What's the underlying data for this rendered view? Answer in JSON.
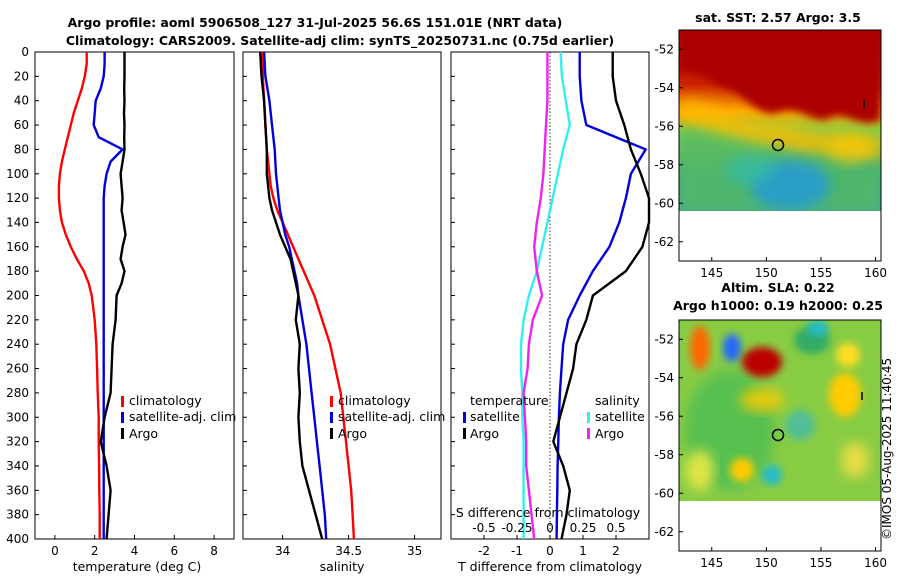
{
  "header": {
    "line1": "Argo profile: aoml 5906508_127 31-Jul-2025 56.6S 151.01E (NRT data)",
    "line2": "Climatology: CARS2009. Satellite-adj clim: synTS_20250731.nc (0.75d earlier)"
  },
  "colors": {
    "climatology": "#ff0000",
    "satellite": "#0000dd",
    "argo": "#000000",
    "sal_satellite": "#33eeee",
    "sal_argo": "#ee22ee"
  },
  "chart_data": [
    {
      "type": "line",
      "name": "temperature",
      "xlabel": "temperature (deg C)",
      "xlim": [
        -1,
        9
      ],
      "xticks": [
        "0",
        "2",
        "4",
        "6",
        "8"
      ],
      "ylim": [
        400,
        0
      ],
      "yticks": [
        "0",
        "20",
        "40",
        "60",
        "80",
        "100",
        "120",
        "140",
        "160",
        "180",
        "200",
        "220",
        "240",
        "260",
        "280",
        "300",
        "320",
        "340",
        "360",
        "380",
        "400"
      ],
      "legend": [
        "climatology",
        "satellite-adj. clim",
        "Argo"
      ],
      "depth": [
        0,
        10,
        20,
        30,
        40,
        50,
        60,
        70,
        80,
        90,
        100,
        110,
        120,
        130,
        140,
        150,
        160,
        170,
        180,
        190,
        200,
        220,
        240,
        260,
        280,
        300,
        320,
        340,
        360,
        380,
        400
      ],
      "series": [
        {
          "name": "climatology",
          "values": [
            1.6,
            1.6,
            1.5,
            1.35,
            1.15,
            0.95,
            0.8,
            0.65,
            0.5,
            0.35,
            0.25,
            0.2,
            0.2,
            0.25,
            0.35,
            0.55,
            0.8,
            1.1,
            1.45,
            1.7,
            1.85,
            2.0,
            2.08,
            2.12,
            2.15,
            2.2,
            2.2,
            2.22,
            2.23,
            2.25,
            2.25
          ]
        },
        {
          "name": "satellite-adj. clim",
          "values": [
            2.5,
            2.5,
            2.45,
            2.3,
            2.05,
            2.0,
            1.95,
            2.2,
            3.4,
            2.8,
            2.6,
            2.5,
            2.45,
            2.45,
            2.45,
            2.45,
            2.45,
            2.45,
            2.45,
            2.45,
            2.45,
            2.45,
            2.45,
            2.45,
            2.45,
            2.45,
            2.45,
            2.45,
            2.45,
            2.45,
            2.45
          ]
        },
        {
          "name": "Argo",
          "values": [
            3.5,
            3.5,
            3.5,
            3.48,
            3.5,
            3.47,
            3.5,
            3.48,
            3.5,
            3.4,
            3.3,
            3.35,
            3.4,
            3.35,
            3.45,
            3.55,
            3.4,
            3.3,
            3.5,
            3.35,
            3.1,
            3.05,
            2.9,
            2.85,
            2.8,
            2.5,
            2.3,
            2.6,
            2.8,
            2.7,
            2.6
          ]
        }
      ]
    },
    {
      "type": "line",
      "name": "salinity",
      "xlabel": "salinity",
      "xlim": [
        33.7,
        35.2
      ],
      "xticks": [
        "34",
        "34.5",
        "35"
      ],
      "ylim": [
        400,
        0
      ],
      "legend": [
        "climatology",
        "satellite-adj. clim",
        "Argo"
      ],
      "depth": [
        0,
        20,
        40,
        60,
        80,
        100,
        110,
        120,
        130,
        140,
        150,
        160,
        170,
        180,
        190,
        200,
        220,
        240,
        260,
        280,
        300,
        320,
        340,
        360,
        380,
        400
      ],
      "series": [
        {
          "name": "climatology",
          "values": [
            33.85,
            33.85,
            33.86,
            33.87,
            33.88,
            33.9,
            33.91,
            33.93,
            33.96,
            34.0,
            34.04,
            34.08,
            34.12,
            34.16,
            34.2,
            34.24,
            34.3,
            34.36,
            34.4,
            34.44,
            34.46,
            34.48,
            34.5,
            34.52,
            34.53,
            34.54
          ]
        },
        {
          "name": "satellite-adj. clim",
          "values": [
            33.86,
            33.87,
            33.9,
            33.92,
            33.94,
            33.95,
            33.96,
            33.97,
            33.98,
            34.0,
            34.02,
            34.05,
            34.07,
            34.09,
            34.11,
            34.12,
            34.15,
            34.18,
            34.2,
            34.22,
            34.24,
            34.26,
            34.28,
            34.3,
            34.32,
            34.33
          ]
        },
        {
          "name": "Argo",
          "values": [
            33.83,
            33.84,
            33.86,
            33.87,
            33.88,
            33.88,
            33.89,
            33.9,
            33.92,
            33.95,
            33.98,
            34.02,
            34.06,
            34.08,
            34.1,
            34.12,
            34.1,
            34.13,
            34.12,
            34.13,
            34.12,
            34.13,
            34.15,
            34.2,
            34.25,
            34.3
          ]
        }
      ]
    },
    {
      "type": "line",
      "name": "difference",
      "xlabel": "T difference from climatology",
      "xlabel2": "S difference from climatology",
      "xlim": [
        -3,
        3
      ],
      "xticks": [
        "-2",
        "-1",
        "0",
        "1",
        "2"
      ],
      "s_ticks": [
        "-0.5",
        "-0.25",
        "0",
        "0.25",
        "0.5"
      ],
      "ylim": [
        400,
        0
      ],
      "legend_temp": {
        "heading": "temperature",
        "items": [
          "satellite",
          "Argo"
        ]
      },
      "legend_sal": {
        "heading": "salinity",
        "items": [
          "satellite",
          "Argo"
        ]
      },
      "depth": [
        0,
        20,
        40,
        60,
        80,
        100,
        120,
        140,
        160,
        180,
        200,
        220,
        240,
        260,
        280,
        300,
        320,
        340,
        360,
        380,
        400
      ],
      "series": [
        {
          "name": "T satellite",
          "values": [
            0.9,
            0.9,
            0.95,
            1.1,
            2.9,
            2.45,
            2.3,
            2.1,
            1.8,
            1.3,
            0.9,
            0.55,
            0.4,
            0.35,
            0.3,
            0.27,
            0.25,
            0.23,
            0.22,
            0.21,
            0.2
          ]
        },
        {
          "name": "T Argo",
          "values": [
            1.9,
            1.9,
            2.0,
            2.25,
            2.45,
            2.75,
            3.0,
            3.0,
            2.8,
            2.3,
            1.3,
            1.1,
            0.8,
            0.7,
            0.5,
            0.3,
            0.1,
            0.4,
            0.6,
            0.5,
            0.35
          ]
        },
        {
          "name": "S satellite",
          "values": [
            0.08,
            0.09,
            0.12,
            0.15,
            0.1,
            0.06,
            0.02,
            -0.02,
            -0.06,
            -0.1,
            -0.16,
            -0.2,
            -0.22,
            -0.22,
            -0.21,
            -0.21,
            -0.2,
            -0.2,
            -0.2,
            -0.2,
            -0.2
          ]
        },
        {
          "name": "S Argo",
          "values": [
            -0.02,
            -0.02,
            -0.02,
            -0.03,
            -0.04,
            -0.05,
            -0.07,
            -0.1,
            -0.12,
            -0.1,
            -0.06,
            -0.13,
            -0.16,
            -0.17,
            -0.2,
            -0.19,
            -0.18,
            -0.18,
            -0.16,
            -0.14,
            -0.12
          ]
        }
      ]
    },
    {
      "type": "heatmap",
      "name": "sst_map",
      "title": "sat. SST: 2.57 Argo: 3.5",
      "xticks": [
        "145",
        "150",
        "155",
        "160"
      ],
      "yticks": [
        "-52",
        "-54",
        "-56",
        "-58",
        "-60",
        "-62"
      ],
      "xlim": [
        142,
        160.5
      ],
      "ylim": [
        -63,
        -51
      ],
      "float_position": [
        151.01,
        -56.6
      ]
    },
    {
      "type": "heatmap",
      "name": "sla_map",
      "title": "Altim. SLA: 0.22",
      "subtitle": "Argo h1000: 0.19 h2000: 0.25",
      "xticks": [
        "145",
        "150",
        "155",
        "160"
      ],
      "yticks": [
        "-52",
        "-54",
        "-56",
        "-58",
        "-60",
        "-62"
      ],
      "xlim": [
        142,
        160.5
      ],
      "ylim": [
        -63,
        -51
      ],
      "float_position": [
        151.01,
        -56.6
      ]
    }
  ],
  "stamp": "©IMOS 05-Aug-2025 11:40:45"
}
